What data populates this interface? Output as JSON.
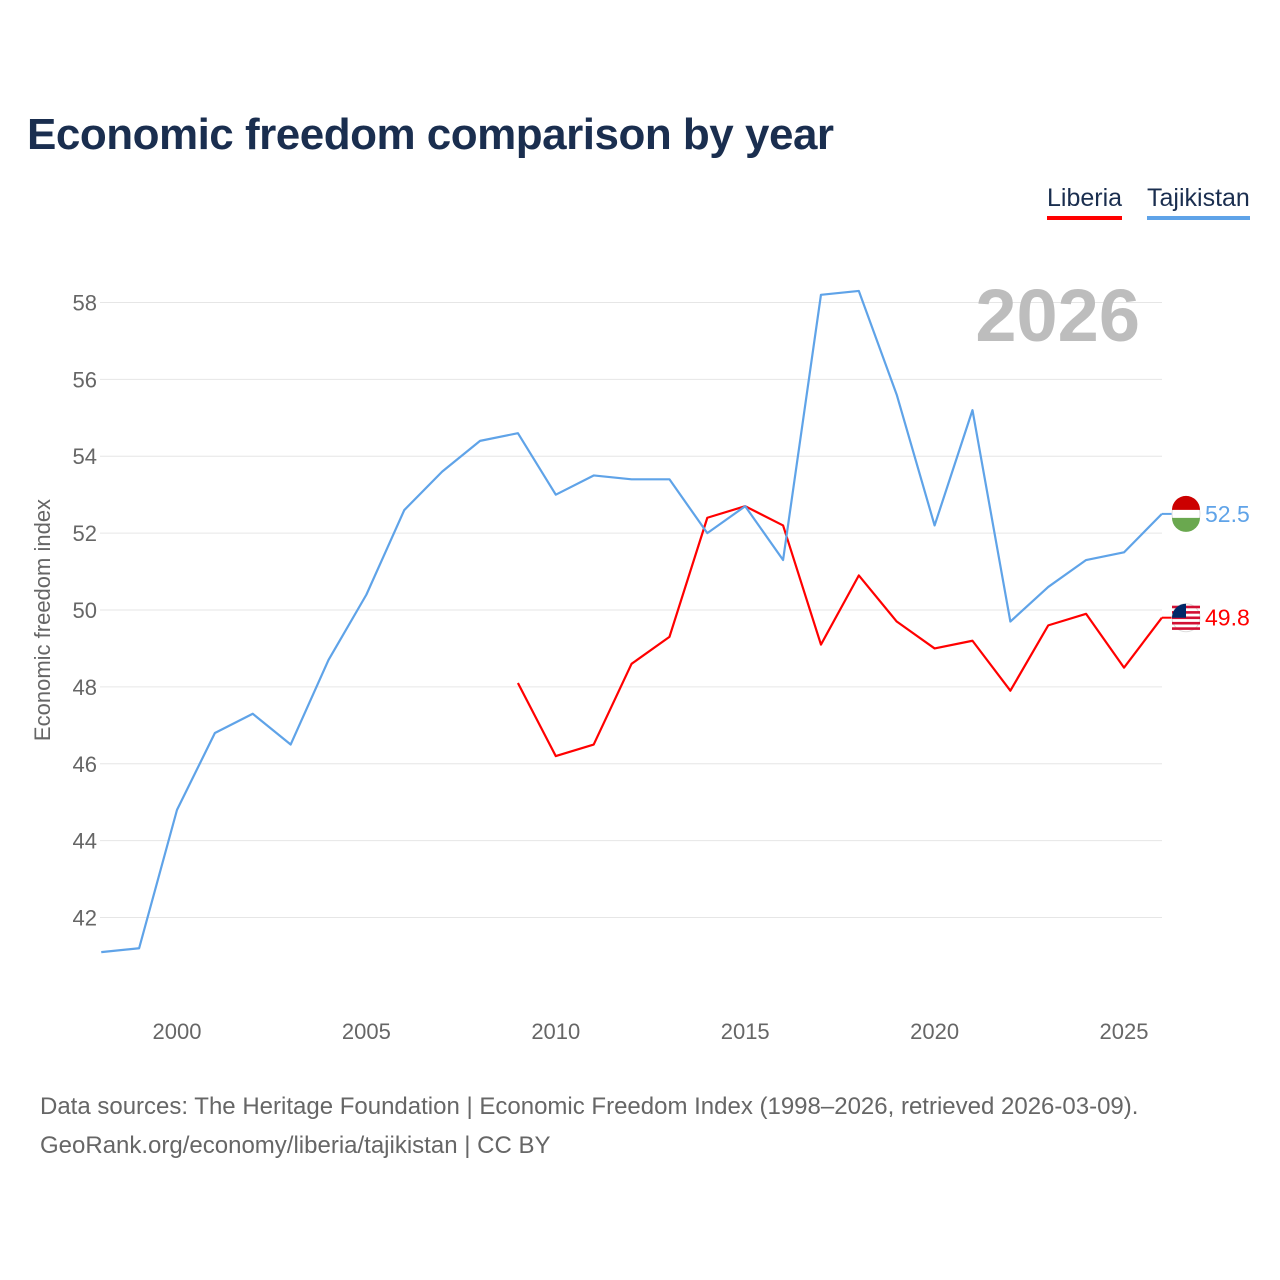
{
  "title": "Economic freedom comparison by year",
  "colors": {
    "Liberia": "#ff0000",
    "Tajikistan": "#5fa3e8",
    "grid": "#e6e6e6",
    "text": "#666666",
    "watermark": "#bdbdbd"
  },
  "chart_data": {
    "type": "line",
    "title": "Economic freedom comparison by year",
    "xlabel": "",
    "ylabel": "Economic freedom index",
    "xlim": [
      1998,
      2026
    ],
    "ylim": [
      40.5,
      59
    ],
    "x_ticks": [
      2000,
      2005,
      2010,
      2015,
      2020,
      2025
    ],
    "y_ticks": [
      42,
      44,
      46,
      48,
      50,
      52,
      54,
      56,
      58
    ],
    "grid": true,
    "legend_placement": "top-right",
    "year_overlay": "2026",
    "series": [
      {
        "name": "Liberia",
        "end_label": "49.8",
        "x": [
          2009,
          2010,
          2011,
          2012,
          2013,
          2014,
          2015,
          2016,
          2017,
          2018,
          2019,
          2020,
          2021,
          2022,
          2023,
          2024,
          2025,
          2026
        ],
        "values": [
          48.1,
          46.2,
          46.5,
          48.6,
          49.3,
          52.4,
          52.7,
          52.2,
          49.1,
          50.9,
          49.7,
          49.0,
          49.2,
          47.9,
          49.6,
          49.9,
          48.5,
          49.8
        ]
      },
      {
        "name": "Tajikistan",
        "end_label": "52.5",
        "x": [
          1998,
          1999,
          2000,
          2001,
          2002,
          2003,
          2004,
          2005,
          2006,
          2007,
          2008,
          2009,
          2010,
          2011,
          2012,
          2013,
          2014,
          2015,
          2016,
          2017,
          2018,
          2019,
          2020,
          2021,
          2022,
          2023,
          2024,
          2025,
          2026
        ],
        "values": [
          41.1,
          41.2,
          44.8,
          46.8,
          47.3,
          46.5,
          48.7,
          50.4,
          52.6,
          53.6,
          54.4,
          54.6,
          53.0,
          53.5,
          53.4,
          53.4,
          52.0,
          52.7,
          51.3,
          58.2,
          58.3,
          55.6,
          52.2,
          55.2,
          49.7,
          50.6,
          51.3,
          51.5,
          52.5
        ]
      }
    ]
  },
  "footer": {
    "line1": "Data sources: The Heritage Foundation | Economic Freedom Index (1998–2026, retrieved 2026-03-09).",
    "line2": "GeoRank.org/economy/liberia/tajikistan | CC BY"
  }
}
